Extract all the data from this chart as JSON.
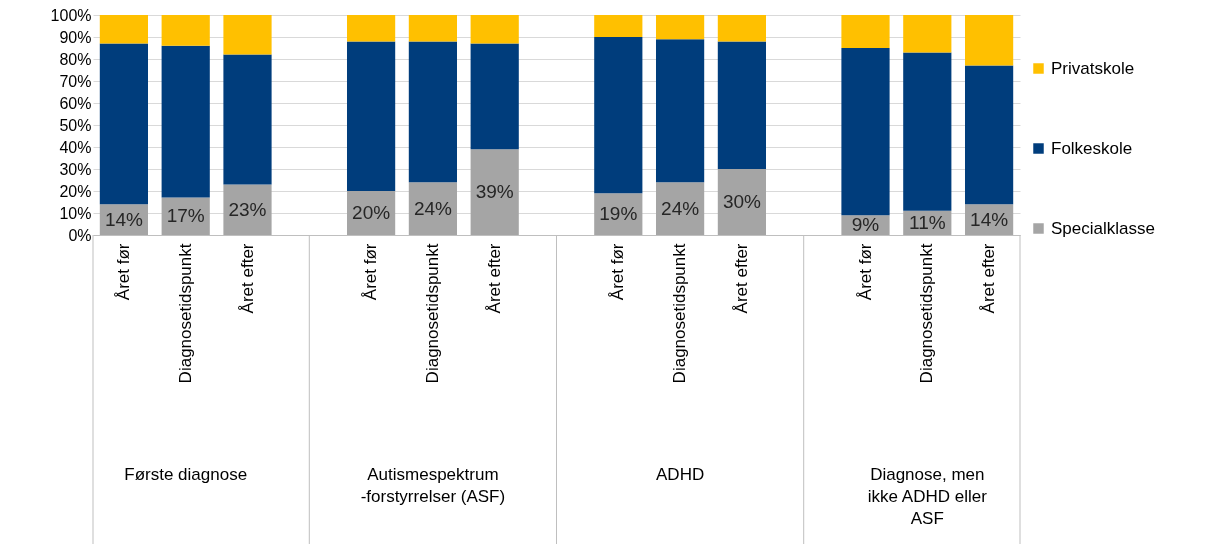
{
  "chart_data": {
    "type": "bar",
    "stacked": true,
    "categories": [
      "Året før",
      "Diagnosetidspunkt",
      "Året efter",
      "Året før",
      "Diagnosetidspunkt",
      "Året efter",
      "Året før",
      "Diagnosetidspunkt",
      "Året efter",
      "Året før",
      "Diagnosetidspunkt",
      "Året efter"
    ],
    "annotations": [
      "Første diagnose",
      "Autismespektrum\n-forstyrrelser (ASF)",
      "ADHD",
      "Diagnose, men\nikke ADHD eller\nASF"
    ],
    "series": [
      {
        "name": "Specialklasse",
        "color": "#a5a5a5",
        "values": [
          14,
          17,
          23,
          20,
          24,
          39,
          19,
          24,
          30,
          9,
          11,
          14
        ],
        "value_labels": [
          "14%",
          "17%",
          "23%",
          "20%",
          "24%",
          "39%",
          "19%",
          "24%",
          "30%",
          "9%",
          "11%",
          "14%"
        ]
      },
      {
        "name": "Folkeskole",
        "color": "#003d7c",
        "values": [
          73,
          69,
          59,
          68,
          64,
          48,
          71,
          65,
          58,
          76,
          72,
          63
        ]
      },
      {
        "name": "Privatskole",
        "color": "#ffc000",
        "values": [
          13,
          14,
          18,
          12,
          12,
          13,
          10,
          11,
          12,
          15,
          17,
          23
        ]
      }
    ],
    "ylim": [
      0,
      100
    ],
    "yticks": [
      {
        "value": 0,
        "label": "0%"
      },
      {
        "value": 10,
        "label": "10%"
      },
      {
        "value": 20,
        "label": "20%"
      },
      {
        "value": 30,
        "label": "30%"
      },
      {
        "value": 40,
        "label": "40%"
      },
      {
        "value": 50,
        "label": "50%"
      },
      {
        "value": 60,
        "label": "60%"
      },
      {
        "value": 70,
        "label": "70%"
      },
      {
        "value": 80,
        "label": "80%"
      },
      {
        "value": 90,
        "label": "90%"
      },
      {
        "value": 100,
        "label": "100%"
      }
    ],
    "grid": "y",
    "legend": "right"
  }
}
